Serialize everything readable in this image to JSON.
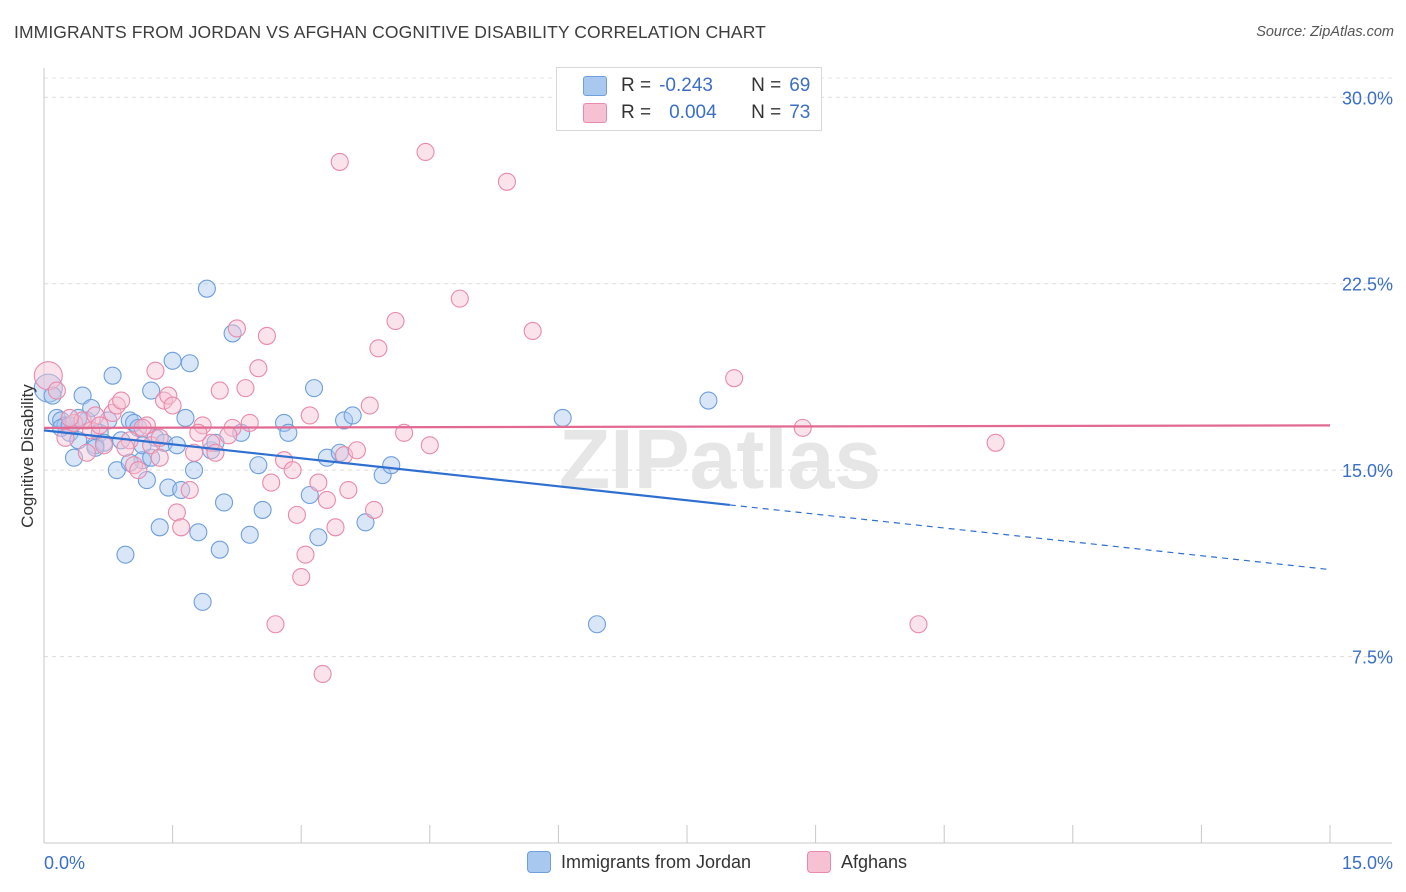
{
  "header": {
    "title": "IMMIGRANTS FROM JORDAN VS AFGHAN COGNITIVE DISABILITY CORRELATION CHART",
    "source": "Source: ZipAtlas.com"
  },
  "legend_top": {
    "rows": [
      {
        "r_label": "R =",
        "r_value": "-0.243",
        "n_label": "N =",
        "n_value": "69",
        "color": "#a9c8f0",
        "border": "#6f9fdc"
      },
      {
        "r_label": "R =",
        "r_value": "0.004",
        "n_label": "N =",
        "n_value": "73",
        "color": "#f6c1d3",
        "border": "#e98aab"
      }
    ]
  },
  "legend_bottom": {
    "items": [
      {
        "label": "Immigrants from Jordan",
        "color": "#a9c8f0",
        "border": "#6f9fdc"
      },
      {
        "label": "Afghans",
        "color": "#f6c1d3",
        "border": "#e98aab"
      }
    ]
  },
  "chart_data": {
    "type": "scatter",
    "title": "IMMIGRANTS FROM JORDAN VS AFGHAN COGNITIVE DISABILITY CORRELATION CHART",
    "xlabel": "",
    "ylabel": "Cognitive Disability",
    "xlim": [
      0,
      15
    ],
    "ylim": [
      0,
      31.5
    ],
    "x_tick_labels": [
      "0.0%",
      "15.0%"
    ],
    "y_ticks": [
      7.5,
      15,
      22.5,
      30
    ],
    "y_tick_labels": [
      "7.5%",
      "15.0%",
      "22.5%",
      "30.0%"
    ],
    "grid": "horizontal-dashed",
    "watermark": "ZIPatlas",
    "series": [
      {
        "name": "Immigrants from Jordan",
        "color": "#6f9fdc",
        "fill": "#a9c8f0",
        "trend": {
          "x": [
            0,
            8.0
          ],
          "y": [
            16.6,
            13.6
          ],
          "dashed_to": [
            15,
            11.0
          ],
          "color": "#2f6fd0"
        },
        "points": [
          [
            0.05,
            18.3
          ],
          [
            0.1,
            18.0
          ],
          [
            0.15,
            17.1
          ],
          [
            0.2,
            17.0
          ],
          [
            0.25,
            16.8
          ],
          [
            0.3,
            16.5
          ],
          [
            0.35,
            15.5
          ],
          [
            0.4,
            16.2
          ],
          [
            0.45,
            18.0
          ],
          [
            0.5,
            17.0
          ],
          [
            0.55,
            17.5
          ],
          [
            0.6,
            16.0
          ],
          [
            0.65,
            16.5
          ],
          [
            0.7,
            16.1
          ],
          [
            0.8,
            18.8
          ],
          [
            0.85,
            15.0
          ],
          [
            0.9,
            16.2
          ],
          [
            0.95,
            11.6
          ],
          [
            1.0,
            17.0
          ],
          [
            1.05,
            16.9
          ],
          [
            1.1,
            16.7
          ],
          [
            1.15,
            15.4
          ],
          [
            1.2,
            14.6
          ],
          [
            1.25,
            18.2
          ],
          [
            1.3,
            16.3
          ],
          [
            1.35,
            12.7
          ],
          [
            1.4,
            16.1
          ],
          [
            1.45,
            14.3
          ],
          [
            1.5,
            19.4
          ],
          [
            1.55,
            16.0
          ],
          [
            1.6,
            14.2
          ],
          [
            1.7,
            19.3
          ],
          [
            1.8,
            12.5
          ],
          [
            1.85,
            9.7
          ],
          [
            1.9,
            22.3
          ],
          [
            1.95,
            15.8
          ],
          [
            2.05,
            11.8
          ],
          [
            2.1,
            13.7
          ],
          [
            2.2,
            20.5
          ],
          [
            2.4,
            12.4
          ],
          [
            2.5,
            15.2
          ],
          [
            2.55,
            13.4
          ],
          [
            2.8,
            16.9
          ],
          [
            2.85,
            16.5
          ],
          [
            3.1,
            14.0
          ],
          [
            3.15,
            18.3
          ],
          [
            3.2,
            12.3
          ],
          [
            3.3,
            15.5
          ],
          [
            3.45,
            15.7
          ],
          [
            3.5,
            17.0
          ],
          [
            3.6,
            17.2
          ],
          [
            3.75,
            12.9
          ],
          [
            3.95,
            14.8
          ],
          [
            4.05,
            15.2
          ],
          [
            6.05,
            17.1
          ],
          [
            6.45,
            8.8
          ],
          [
            7.75,
            17.8
          ],
          [
            1.15,
            16.0
          ],
          [
            0.75,
            17.0
          ],
          [
            1.65,
            17.1
          ],
          [
            0.4,
            17.1
          ],
          [
            0.2,
            16.7
          ],
          [
            2.3,
            16.5
          ],
          [
            1.0,
            15.3
          ],
          [
            0.6,
            15.9
          ],
          [
            1.25,
            15.5
          ],
          [
            0.3,
            16.8
          ],
          [
            1.75,
            15.0
          ],
          [
            2.0,
            16.1
          ]
        ]
      },
      {
        "name": "Afghans",
        "color": "#e98aab",
        "fill": "#f6c1d3",
        "trend": {
          "x": [
            0,
            15
          ],
          "y": [
            16.7,
            16.8
          ],
          "color": "#e26a92"
        },
        "points": [
          [
            0.05,
            18.8
          ],
          [
            0.15,
            18.2
          ],
          [
            0.35,
            16.9
          ],
          [
            0.45,
            17.0
          ],
          [
            0.5,
            15.7
          ],
          [
            0.6,
            17.2
          ],
          [
            0.7,
            16.0
          ],
          [
            0.8,
            17.3
          ],
          [
            0.85,
            17.6
          ],
          [
            0.9,
            17.8
          ],
          [
            1.0,
            16.2
          ],
          [
            1.05,
            15.2
          ],
          [
            1.1,
            15.0
          ],
          [
            1.2,
            16.8
          ],
          [
            1.25,
            16.0
          ],
          [
            1.3,
            19.0
          ],
          [
            1.35,
            15.5
          ],
          [
            1.4,
            17.8
          ],
          [
            1.45,
            18.0
          ],
          [
            1.5,
            17.6
          ],
          [
            1.55,
            13.3
          ],
          [
            1.6,
            12.7
          ],
          [
            1.7,
            14.2
          ],
          [
            1.75,
            15.7
          ],
          [
            1.85,
            16.8
          ],
          [
            1.95,
            16.1
          ],
          [
            2.0,
            15.7
          ],
          [
            2.05,
            18.2
          ],
          [
            2.2,
            16.7
          ],
          [
            2.25,
            20.7
          ],
          [
            2.35,
            18.3
          ],
          [
            2.4,
            16.9
          ],
          [
            2.5,
            19.1
          ],
          [
            2.6,
            20.4
          ],
          [
            2.65,
            14.5
          ],
          [
            2.7,
            8.8
          ],
          [
            2.8,
            15.4
          ],
          [
            2.9,
            15.0
          ],
          [
            2.95,
            13.2
          ],
          [
            3.0,
            10.7
          ],
          [
            3.05,
            11.6
          ],
          [
            3.1,
            17.2
          ],
          [
            3.2,
            14.5
          ],
          [
            3.25,
            6.8
          ],
          [
            3.3,
            13.8
          ],
          [
            3.4,
            12.7
          ],
          [
            3.45,
            27.4
          ],
          [
            3.5,
            15.6
          ],
          [
            3.55,
            14.2
          ],
          [
            3.65,
            15.8
          ],
          [
            3.8,
            17.6
          ],
          [
            3.85,
            13.4
          ],
          [
            3.9,
            19.9
          ],
          [
            4.1,
            21.0
          ],
          [
            4.2,
            16.5
          ],
          [
            4.45,
            27.8
          ],
          [
            4.5,
            16.0
          ],
          [
            4.85,
            21.9
          ],
          [
            5.4,
            26.6
          ],
          [
            5.7,
            20.6
          ],
          [
            8.05,
            18.7
          ],
          [
            8.85,
            16.7
          ],
          [
            10.2,
            8.8
          ],
          [
            11.1,
            16.1
          ],
          [
            0.25,
            16.3
          ],
          [
            0.55,
            16.6
          ],
          [
            0.95,
            15.9
          ],
          [
            1.15,
            16.7
          ],
          [
            0.65,
            16.8
          ],
          [
            1.8,
            16.5
          ],
          [
            2.15,
            16.4
          ],
          [
            0.3,
            17.1
          ],
          [
            1.35,
            16.3
          ]
        ]
      }
    ]
  }
}
